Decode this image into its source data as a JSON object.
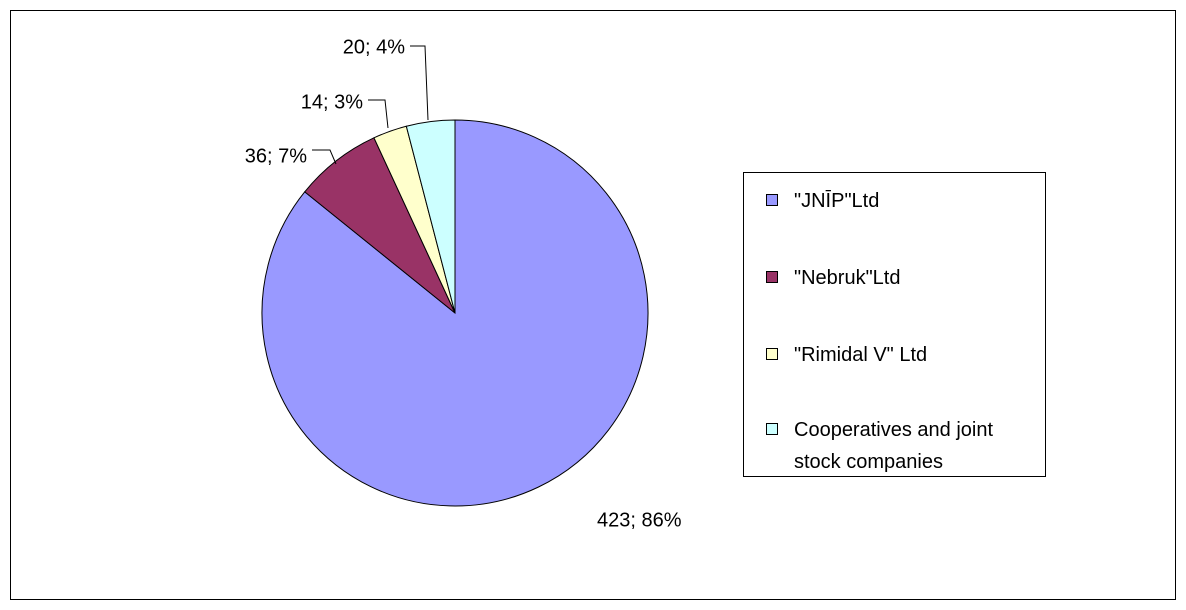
{
  "chart_data": {
    "type": "pie",
    "categories": [
      "\"JNĪP\"Ltd",
      "\"Nebruk\"Ltd",
      "\"Rimidal V\" Ltd",
      "Cooperatives and joint stock companies"
    ],
    "values": [
      423,
      36,
      14,
      20
    ],
    "value_labels": [
      "423; 86%",
      "36; 7%",
      "14; 3%",
      "20; 4%"
    ],
    "colors": [
      "#9999ff",
      "#993366",
      "#ffffcc",
      "#ccffff"
    ],
    "legend": "right"
  }
}
